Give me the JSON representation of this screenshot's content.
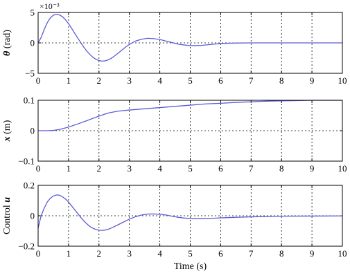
{
  "chart_data": [
    {
      "type": "line",
      "ylabel_symbol": "θ",
      "ylabel_unit": " (rad)",
      "scale_label": "×10⁻³",
      "xlim": [
        0,
        10
      ],
      "ylim": [
        -5,
        5
      ],
      "xticks": [
        "0",
        "1",
        "2",
        "3",
        "4",
        "5",
        "6",
        "7",
        "8",
        "9",
        "10"
      ],
      "yticks": [
        {
          "value": 5,
          "label": "5"
        },
        {
          "value": 0,
          "label": "0"
        },
        {
          "value": -5,
          "label": "−5"
        }
      ],
      "grid": true,
      "series": [
        {
          "color": "#5b5bd6",
          "x": [
            0,
            0.1,
            0.2,
            0.3,
            0.4,
            0.5,
            0.6,
            0.7,
            0.8,
            0.9,
            1.0,
            1.1,
            1.2,
            1.3,
            1.4,
            1.5,
            1.6,
            1.7,
            1.8,
            1.9,
            2.0,
            2.1,
            2.2,
            2.3,
            2.4,
            2.5,
            2.6,
            2.7,
            2.8,
            2.9,
            3.0,
            3.2,
            3.4,
            3.6,
            3.8,
            4.0,
            4.2,
            4.4,
            4.6,
            4.8,
            5.0,
            5.2,
            5.4,
            5.6,
            5.8,
            6.0,
            6.3,
            6.6,
            7.0,
            7.5,
            8.0,
            9.0,
            10.0
          ],
          "y": [
            0,
            0.9,
            2.2,
            3.3,
            4.1,
            4.55,
            4.7,
            4.6,
            4.3,
            3.8,
            3.15,
            2.4,
            1.6,
            0.8,
            0.05,
            -0.7,
            -1.35,
            -1.9,
            -2.35,
            -2.7,
            -2.9,
            -3.0,
            -2.95,
            -2.8,
            -2.55,
            -2.2,
            -1.8,
            -1.4,
            -1.0,
            -0.6,
            -0.25,
            0.3,
            0.6,
            0.75,
            0.7,
            0.55,
            0.3,
            0.05,
            -0.2,
            -0.35,
            -0.45,
            -0.45,
            -0.4,
            -0.3,
            -0.2,
            -0.12,
            -0.05,
            -0.02,
            0,
            0,
            0,
            0,
            0
          ]
        }
      ]
    },
    {
      "type": "line",
      "ylabel_symbol": "x",
      "ylabel_unit": " (m)",
      "xlim": [
        0,
        10
      ],
      "ylim": [
        -0.1,
        0.1
      ],
      "xticks": [
        "0",
        "1",
        "2",
        "3",
        "4",
        "5",
        "6",
        "7",
        "8",
        "9",
        "10"
      ],
      "yticks": [
        {
          "value": 0.1,
          "label": "0.1"
        },
        {
          "value": 0,
          "label": "0"
        },
        {
          "value": -0.1,
          "label": "−0.1"
        }
      ],
      "grid": true,
      "series": [
        {
          "color": "#5b5bd6",
          "x": [
            0,
            0.3,
            0.5,
            0.7,
            1.0,
            1.3,
            1.6,
            2.0,
            2.3,
            2.6,
            3.0,
            3.5,
            4.0,
            4.5,
            5.0,
            5.5,
            6.0,
            6.5,
            7.0,
            7.5,
            8.0,
            8.5,
            9.0,
            9.5,
            10.0
          ],
          "y": [
            0,
            0,
            0.001,
            0.004,
            0.012,
            0.022,
            0.033,
            0.048,
            0.058,
            0.064,
            0.068,
            0.072,
            0.076,
            0.08,
            0.084,
            0.088,
            0.09,
            0.093,
            0.095,
            0.097,
            0.098,
            0.099,
            0.1,
            0.1,
            0.1
          ]
        }
      ]
    },
    {
      "type": "line",
      "ylabel_prefix": "Control ",
      "ylabel_symbol": "u",
      "xlabel": "Time (s)",
      "xlim": [
        0,
        10
      ],
      "ylim": [
        -0.2,
        0.2
      ],
      "xticks": [
        "0",
        "1",
        "2",
        "3",
        "4",
        "5",
        "6",
        "7",
        "8",
        "9",
        "10"
      ],
      "yticks": [
        {
          "value": 0.2,
          "label": "0.2"
        },
        {
          "value": 0,
          "label": "0"
        },
        {
          "value": -0.2,
          "label": "−0.2"
        }
      ],
      "grid": true,
      "series": [
        {
          "color": "#5b5bd6",
          "x": [
            0,
            0.1,
            0.2,
            0.3,
            0.4,
            0.5,
            0.6,
            0.7,
            0.8,
            0.9,
            1.0,
            1.1,
            1.2,
            1.3,
            1.4,
            1.5,
            1.6,
            1.7,
            1.8,
            1.9,
            2.0,
            2.1,
            2.2,
            2.3,
            2.4,
            2.5,
            2.6,
            2.8,
            3.0,
            3.2,
            3.4,
            3.6,
            3.8,
            4.0,
            4.2,
            4.4,
            4.6,
            4.8,
            5.0,
            5.2,
            5.5,
            5.8,
            6.0,
            6.5,
            7.0,
            7.5,
            8.0,
            9.0,
            10.0
          ],
          "y": [
            -0.08,
            0.0,
            0.05,
            0.09,
            0.115,
            0.13,
            0.137,
            0.135,
            0.125,
            0.11,
            0.09,
            0.065,
            0.04,
            0.015,
            -0.01,
            -0.033,
            -0.053,
            -0.07,
            -0.082,
            -0.09,
            -0.095,
            -0.096,
            -0.094,
            -0.089,
            -0.081,
            -0.072,
            -0.062,
            -0.042,
            -0.022,
            -0.006,
            0.005,
            0.011,
            0.012,
            0.01,
            0.005,
            -0.003,
            -0.01,
            -0.015,
            -0.018,
            -0.019,
            -0.018,
            -0.016,
            -0.014,
            -0.01,
            -0.007,
            -0.005,
            -0.003,
            -0.002,
            -0.001
          ]
        }
      ]
    }
  ]
}
